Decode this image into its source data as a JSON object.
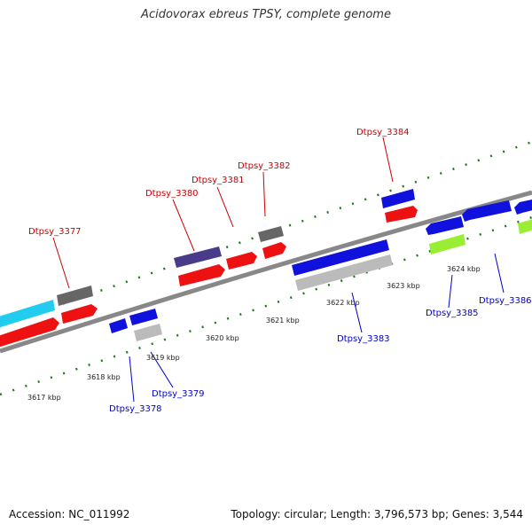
{
  "title": "Acidovorax ebreus TPSY, complete genome",
  "footer": {
    "accession": "Accession: NC_011992",
    "summary": "Topology: circular; Length: 3,796,573 bp; Genes: 3,544"
  },
  "colors": {
    "label_top": "#cc0000",
    "label_bottom": "#0000cc",
    "backbone": "#888888",
    "dots": "#1a7a1a"
  },
  "tick_labels": [
    "3617 kbp",
    "3618 kbp",
    "3619 kbp",
    "3620 kbp",
    "3621 kbp",
    "3622 kbp",
    "3623 kbp",
    "3624 kbp"
  ],
  "gene_labels": {
    "top": [
      "Dtpsy_3377",
      "Dtpsy_3380",
      "Dtpsy_3381",
      "Dtpsy_3382",
      "Dtpsy_3384"
    ],
    "bottom": [
      "Dtpsy_3378",
      "Dtpsy_3379",
      "Dtpsy_3383",
      "Dtpsy_3385",
      "Dtpsy_3386"
    ]
  }
}
